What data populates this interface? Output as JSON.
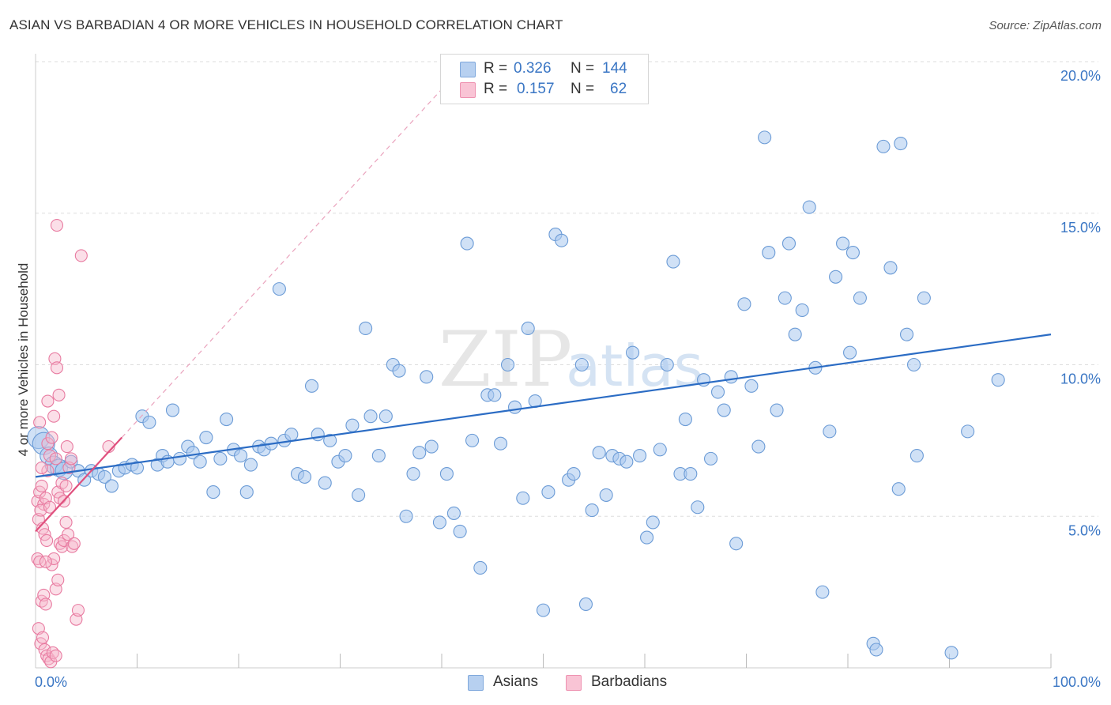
{
  "title": "ASIAN VS BARBADIAN 4 OR MORE VEHICLES IN HOUSEHOLD CORRELATION CHART",
  "source": "Source: ZipAtlas.com",
  "watermark": {
    "zip": "ZIP",
    "atlas": "atlas"
  },
  "legend": {
    "asians": {
      "r_label": "R =",
      "r_value": "0.326",
      "n_label": "N =",
      "n_value": "144"
    },
    "barbadians": {
      "r_label": "R =",
      "r_value": "0.157",
      "n_label": "N =",
      "n_value": "62"
    }
  },
  "bottom_legend": {
    "asians": "Asians",
    "barbadians": "Barbadians"
  },
  "colors": {
    "asian_fill": "#a9c8ee",
    "asian_stroke": "#6b9bd6",
    "asian_line": "#2b6cc4",
    "barb_fill": "#f7b8cc",
    "barb_stroke": "#e87aa0",
    "barb_line": "#e0507e",
    "axis_text": "#3a76c4",
    "grid": "#dddddd"
  },
  "chart_data": {
    "type": "scatter",
    "title": "ASIAN VS BARBADIAN 4 OR MORE VEHICLES IN HOUSEHOLD CORRELATION CHART",
    "xlabel": "",
    "ylabel": "4 or more Vehicles in Household",
    "xlim": [
      0,
      100
    ],
    "ylim": [
      0,
      20
    ],
    "x_tick_labels": [
      "0.0%",
      "100.0%"
    ],
    "y_ticks": [
      5,
      10,
      15,
      20
    ],
    "y_tick_labels": [
      "5.0%",
      "10.0%",
      "15.0%",
      "20.0%"
    ],
    "series": [
      {
        "name": "Asians",
        "r": 0.326,
        "n": 144,
        "trend": {
          "x": [
            0,
            100
          ],
          "y": [
            6.3,
            11.0
          ]
        },
        "points": [
          [
            0.3,
            7.6
          ],
          [
            0.8,
            7.4
          ],
          [
            1.3,
            7.0
          ],
          [
            1.8,
            6.7
          ],
          [
            2.3,
            6.6
          ],
          [
            2.8,
            6.5
          ],
          [
            3.5,
            6.8
          ],
          [
            4.2,
            6.5
          ],
          [
            4.8,
            6.2
          ],
          [
            5.5,
            6.5
          ],
          [
            6.2,
            6.4
          ],
          [
            6.8,
            6.3
          ],
          [
            7.5,
            6.0
          ],
          [
            8.2,
            6.5
          ],
          [
            8.8,
            6.6
          ],
          [
            9.5,
            6.7
          ],
          [
            10.0,
            6.6
          ],
          [
            10.5,
            8.3
          ],
          [
            11.2,
            8.1
          ],
          [
            12.0,
            6.7
          ],
          [
            12.5,
            7.0
          ],
          [
            13.0,
            6.8
          ],
          [
            13.5,
            8.5
          ],
          [
            14.2,
            6.9
          ],
          [
            15.0,
            7.3
          ],
          [
            15.5,
            7.1
          ],
          [
            16.2,
            6.8
          ],
          [
            16.8,
            7.6
          ],
          [
            17.5,
            5.8
          ],
          [
            18.2,
            6.9
          ],
          [
            18.8,
            8.2
          ],
          [
            19.5,
            7.2
          ],
          [
            20.2,
            7.0
          ],
          [
            20.8,
            5.8
          ],
          [
            21.2,
            6.7
          ],
          [
            22.0,
            7.3
          ],
          [
            22.5,
            7.2
          ],
          [
            23.2,
            7.4
          ],
          [
            24.0,
            12.5
          ],
          [
            24.5,
            7.5
          ],
          [
            25.2,
            7.7
          ],
          [
            25.8,
            6.4
          ],
          [
            26.5,
            6.3
          ],
          [
            27.2,
            9.3
          ],
          [
            27.8,
            7.7
          ],
          [
            28.5,
            6.1
          ],
          [
            29.0,
            7.5
          ],
          [
            29.8,
            6.8
          ],
          [
            30.5,
            7.0
          ],
          [
            31.2,
            8.0
          ],
          [
            31.8,
            5.7
          ],
          [
            32.5,
            11.2
          ],
          [
            33.0,
            8.3
          ],
          [
            33.8,
            7.0
          ],
          [
            34.5,
            8.3
          ],
          [
            35.2,
            10.0
          ],
          [
            35.8,
            9.8
          ],
          [
            36.5,
            5.0
          ],
          [
            37.2,
            6.4
          ],
          [
            37.8,
            7.1
          ],
          [
            38.5,
            9.6
          ],
          [
            39.0,
            7.3
          ],
          [
            39.8,
            4.8
          ],
          [
            40.5,
            6.4
          ],
          [
            41.2,
            5.1
          ],
          [
            41.8,
            4.5
          ],
          [
            42.5,
            14.0
          ],
          [
            43.0,
            7.5
          ],
          [
            43.8,
            3.3
          ],
          [
            44.5,
            9.0
          ],
          [
            45.2,
            9.0
          ],
          [
            45.8,
            7.4
          ],
          [
            46.5,
            10.0
          ],
          [
            47.2,
            8.6
          ],
          [
            48.0,
            5.6
          ],
          [
            48.5,
            11.2
          ],
          [
            49.2,
            8.8
          ],
          [
            50.0,
            1.9
          ],
          [
            50.5,
            5.8
          ],
          [
            51.2,
            14.3
          ],
          [
            51.8,
            14.1
          ],
          [
            52.5,
            6.2
          ],
          [
            53.0,
            6.4
          ],
          [
            53.8,
            10.0
          ],
          [
            54.2,
            2.1
          ],
          [
            54.8,
            5.2
          ],
          [
            55.5,
            7.1
          ],
          [
            56.2,
            5.7
          ],
          [
            56.8,
            7.0
          ],
          [
            57.5,
            6.9
          ],
          [
            58.2,
            6.8
          ],
          [
            58.8,
            10.4
          ],
          [
            59.5,
            7.0
          ],
          [
            60.2,
            4.3
          ],
          [
            60.8,
            4.8
          ],
          [
            61.5,
            7.2
          ],
          [
            62.2,
            10.0
          ],
          [
            62.8,
            13.4
          ],
          [
            63.5,
            6.4
          ],
          [
            64.0,
            8.2
          ],
          [
            64.5,
            6.4
          ],
          [
            65.2,
            5.3
          ],
          [
            65.8,
            9.5
          ],
          [
            66.5,
            6.9
          ],
          [
            67.2,
            9.1
          ],
          [
            67.8,
            8.5
          ],
          [
            68.5,
            9.6
          ],
          [
            69.0,
            4.1
          ],
          [
            69.8,
            12.0
          ],
          [
            70.5,
            9.3
          ],
          [
            71.2,
            7.3
          ],
          [
            71.8,
            17.5
          ],
          [
            72.2,
            13.7
          ],
          [
            73.0,
            8.5
          ],
          [
            73.8,
            12.2
          ],
          [
            74.2,
            14.0
          ],
          [
            74.8,
            11.0
          ],
          [
            75.5,
            11.8
          ],
          [
            76.2,
            15.2
          ],
          [
            76.8,
            9.9
          ],
          [
            77.5,
            2.5
          ],
          [
            78.2,
            7.8
          ],
          [
            78.8,
            12.9
          ],
          [
            79.5,
            14.0
          ],
          [
            80.2,
            10.4
          ],
          [
            80.5,
            13.7
          ],
          [
            81.2,
            12.2
          ],
          [
            82.5,
            0.8
          ],
          [
            82.8,
            0.6
          ],
          [
            83.5,
            17.2
          ],
          [
            84.2,
            13.2
          ],
          [
            85.0,
            5.9
          ],
          [
            85.8,
            11.0
          ],
          [
            86.5,
            10.0
          ],
          [
            86.8,
            7.0
          ],
          [
            87.5,
            12.2
          ],
          [
            90.2,
            0.5
          ],
          [
            91.8,
            7.8
          ],
          [
            94.8,
            9.5
          ],
          [
            85.2,
            17.3
          ]
        ]
      },
      {
        "name": "Barbadians",
        "r": 0.157,
        "n": 62,
        "trend": {
          "x": [
            0,
            8.5
          ],
          "y": [
            4.5,
            7.6
          ]
        },
        "points": [
          [
            0.2,
            5.5
          ],
          [
            0.4,
            5.8
          ],
          [
            0.6,
            6.0
          ],
          [
            0.8,
            5.4
          ],
          [
            1.0,
            5.6
          ],
          [
            1.2,
            6.5
          ],
          [
            0.3,
            4.9
          ],
          [
            0.5,
            5.2
          ],
          [
            0.7,
            4.6
          ],
          [
            0.9,
            4.4
          ],
          [
            1.1,
            4.2
          ],
          [
            0.2,
            3.6
          ],
          [
            0.4,
            3.5
          ],
          [
            0.6,
            2.2
          ],
          [
            0.8,
            2.4
          ],
          [
            1.0,
            2.1
          ],
          [
            0.3,
            1.3
          ],
          [
            0.5,
            0.8
          ],
          [
            0.7,
            1.0
          ],
          [
            0.9,
            0.6
          ],
          [
            1.1,
            0.4
          ],
          [
            1.3,
            0.3
          ],
          [
            1.5,
            0.2
          ],
          [
            1.7,
            0.5
          ],
          [
            2.0,
            0.4
          ],
          [
            1.2,
            7.4
          ],
          [
            1.4,
            7.0
          ],
          [
            1.6,
            7.6
          ],
          [
            1.8,
            8.3
          ],
          [
            1.2,
            8.8
          ],
          [
            2.0,
            6.9
          ],
          [
            2.2,
            5.8
          ],
          [
            2.4,
            5.6
          ],
          [
            2.6,
            6.1
          ],
          [
            2.8,
            5.5
          ],
          [
            3.0,
            6.0
          ],
          [
            1.6,
            3.4
          ],
          [
            1.8,
            3.6
          ],
          [
            2.0,
            2.6
          ],
          [
            2.2,
            2.9
          ],
          [
            2.4,
            4.1
          ],
          [
            2.6,
            4.0
          ],
          [
            2.8,
            4.2
          ],
          [
            3.0,
            4.8
          ],
          [
            3.2,
            4.4
          ],
          [
            3.6,
            4.0
          ],
          [
            3.8,
            4.1
          ],
          [
            4.0,
            1.6
          ],
          [
            4.2,
            1.9
          ],
          [
            1.9,
            10.2
          ],
          [
            2.1,
            9.9
          ],
          [
            2.3,
            9.0
          ],
          [
            2.1,
            14.6
          ],
          [
            4.5,
            13.6
          ],
          [
            3.1,
            7.3
          ],
          [
            3.3,
            6.6
          ],
          [
            3.5,
            6.9
          ],
          [
            0.4,
            8.1
          ],
          [
            0.6,
            6.6
          ],
          [
            1.4,
            5.3
          ],
          [
            7.2,
            7.3
          ],
          [
            1.0,
            3.5
          ]
        ]
      }
    ]
  }
}
